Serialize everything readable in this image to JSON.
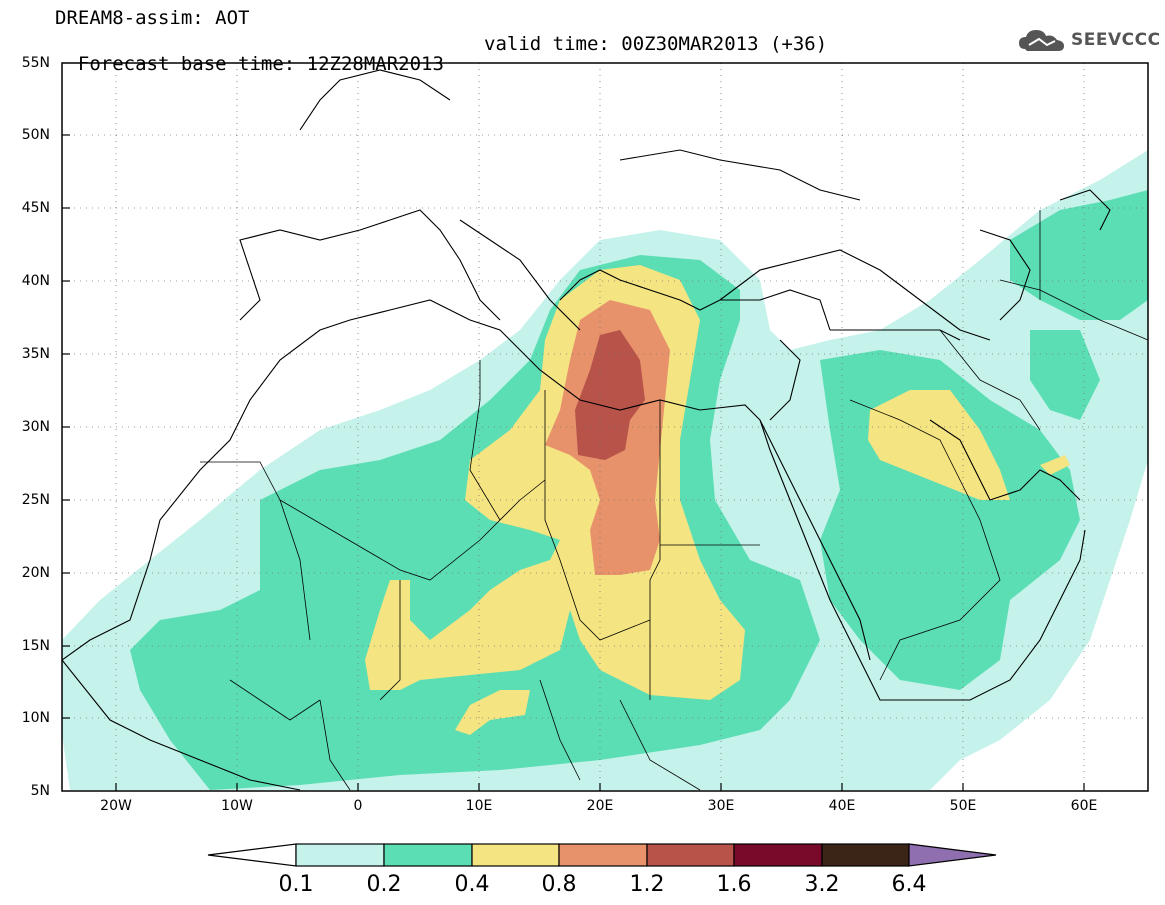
{
  "title": {
    "line1": "DREAM8-assim: AOT",
    "base_time": "Forecast base time: 12Z28MAR2013",
    "valid_time": "valid time: 00Z30MAR2013 (+36)"
  },
  "logo": {
    "text": "SEEVCCC",
    "icon": "cloud-icon",
    "color": "#555555"
  },
  "map": {
    "lat_labels": [
      "55N",
      "50N",
      "45N",
      "40N",
      "35N",
      "30N",
      "25N",
      "20N",
      "15N",
      "10N",
      "5N"
    ],
    "lon_labels": [
      "20W",
      "10W",
      "0",
      "10E",
      "20E",
      "30E",
      "40E",
      "50E",
      "60E"
    ],
    "lat_range": [
      5,
      55
    ],
    "lon_range": [
      -25,
      65
    ],
    "grid": "dotted"
  },
  "colorbar": {
    "levels": [
      "0.1",
      "0.2",
      "0.4",
      "0.8",
      "1.2",
      "1.6",
      "3.2",
      "6.4"
    ],
    "colors": [
      "#c5f2ea",
      "#5cdeb4",
      "#f4e482",
      "#e8926b",
      "#b8534a",
      "#7a0a2a",
      "#3b2517",
      "#8f6fb0"
    ],
    "low_color": "#ffffff"
  }
}
